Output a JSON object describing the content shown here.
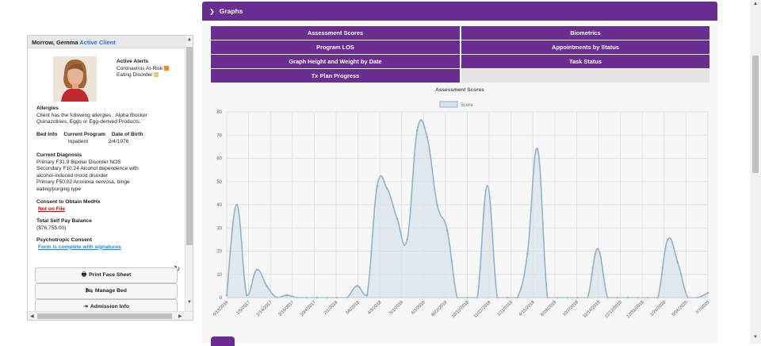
{
  "client": {
    "name": "Morrow, Gemma",
    "status": "Active Client",
    "alerts_title": "Active Alerts",
    "alerts": [
      {
        "label": "Coronavirus At-Risk",
        "color": "#f28a1c"
      },
      {
        "label": "Eating Disorder",
        "color": "#f6c27e"
      }
    ],
    "allergies_heading": "Allergies",
    "allergies_text_1": "Client has the following allergies : Alpha Blocker",
    "allergies_text_2": "Quinazolines, Eggs or Egg-derived Products.",
    "bed_info_label": "Bed Info",
    "current_program_label": "Current Program",
    "current_program_value": "Inpatient",
    "dob_label": "Date of Birth",
    "dob_value": "2/4/1976",
    "diagnosis_heading": "Current Diagnosis",
    "diagnosis_lines": [
      "Primary F31.9 Bipolar Disorder NOS",
      "Secondary F10.24 Alcohol dependence with",
      "alcohol-induced mood disorder",
      "Primary F50.02 Anorexia nervosa, binge",
      "eating/purging type"
    ],
    "consent_heading": "Consent to Obtain MedHx",
    "consent_link": "Not on File",
    "balance_heading": "Total Self Pay Balance",
    "balance_value": "($76,755.00)",
    "psychotropic_heading": "Psychotropic Consent",
    "psychotropic_link": "Form is complete with signatures",
    "buttons": {
      "print_face_sheet": "Print Face Sheet",
      "manage_bed": "Manage Bed",
      "admission_info": "Admission Info"
    },
    "icons": {
      "refresh": "refresh-icon",
      "print": "print-icon",
      "bed": "bed-icon",
      "admission": "sign-in-icon"
    }
  },
  "graphs": {
    "header": "Graphs",
    "tabs": [
      "Assessment Scores",
      "Biometrics",
      "Program LOS",
      "Appointments by Status",
      "Graph Height and Weight by Date",
      "Task Status",
      "Tx Plan Progress"
    ],
    "accent_color": "#6a2d91"
  },
  "chart_data": {
    "type": "area",
    "title": "Assessment Scores",
    "legend": [
      "Score"
    ],
    "legend_position": "top",
    "ylim": [
      0,
      80
    ],
    "yticks": [
      0,
      10,
      20,
      30,
      40,
      50,
      60,
      70,
      80
    ],
    "grid": true,
    "line_color": "#8fb4c9",
    "fill_color": "#d7e3ea",
    "xtick_labels": [
      "4/13/2016",
      "1/5/2017",
      "2/14/2017",
      "3/15/2017",
      "10/4/2017",
      "2/1/2018",
      "3/6/2018",
      "4/3/2018",
      "5/1/2018",
      "6/1/2018",
      "8/22/2018",
      "10/10/2018",
      "11/22/2018",
      "1/11/2019",
      "4/15/2019",
      "8/29/2019",
      "10/7/2019",
      "11/14/2019",
      "12/12/2019",
      "12/31/2019",
      "1/24/2020",
      "5/26/2020",
      "7/7/2020"
    ],
    "series": [
      {
        "name": "Score",
        "values": [
          1,
          40,
          1,
          12,
          5,
          0,
          1,
          0,
          0,
          0,
          0,
          0,
          0,
          5,
          1,
          48,
          47,
          34,
          25,
          72,
          69,
          40,
          29,
          0,
          0,
          0,
          48,
          0,
          0,
          0,
          19,
          64,
          0,
          0,
          0,
          0,
          0,
          21,
          0,
          0,
          0,
          0,
          0,
          0,
          25,
          15,
          0,
          0,
          2
        ]
      }
    ]
  }
}
